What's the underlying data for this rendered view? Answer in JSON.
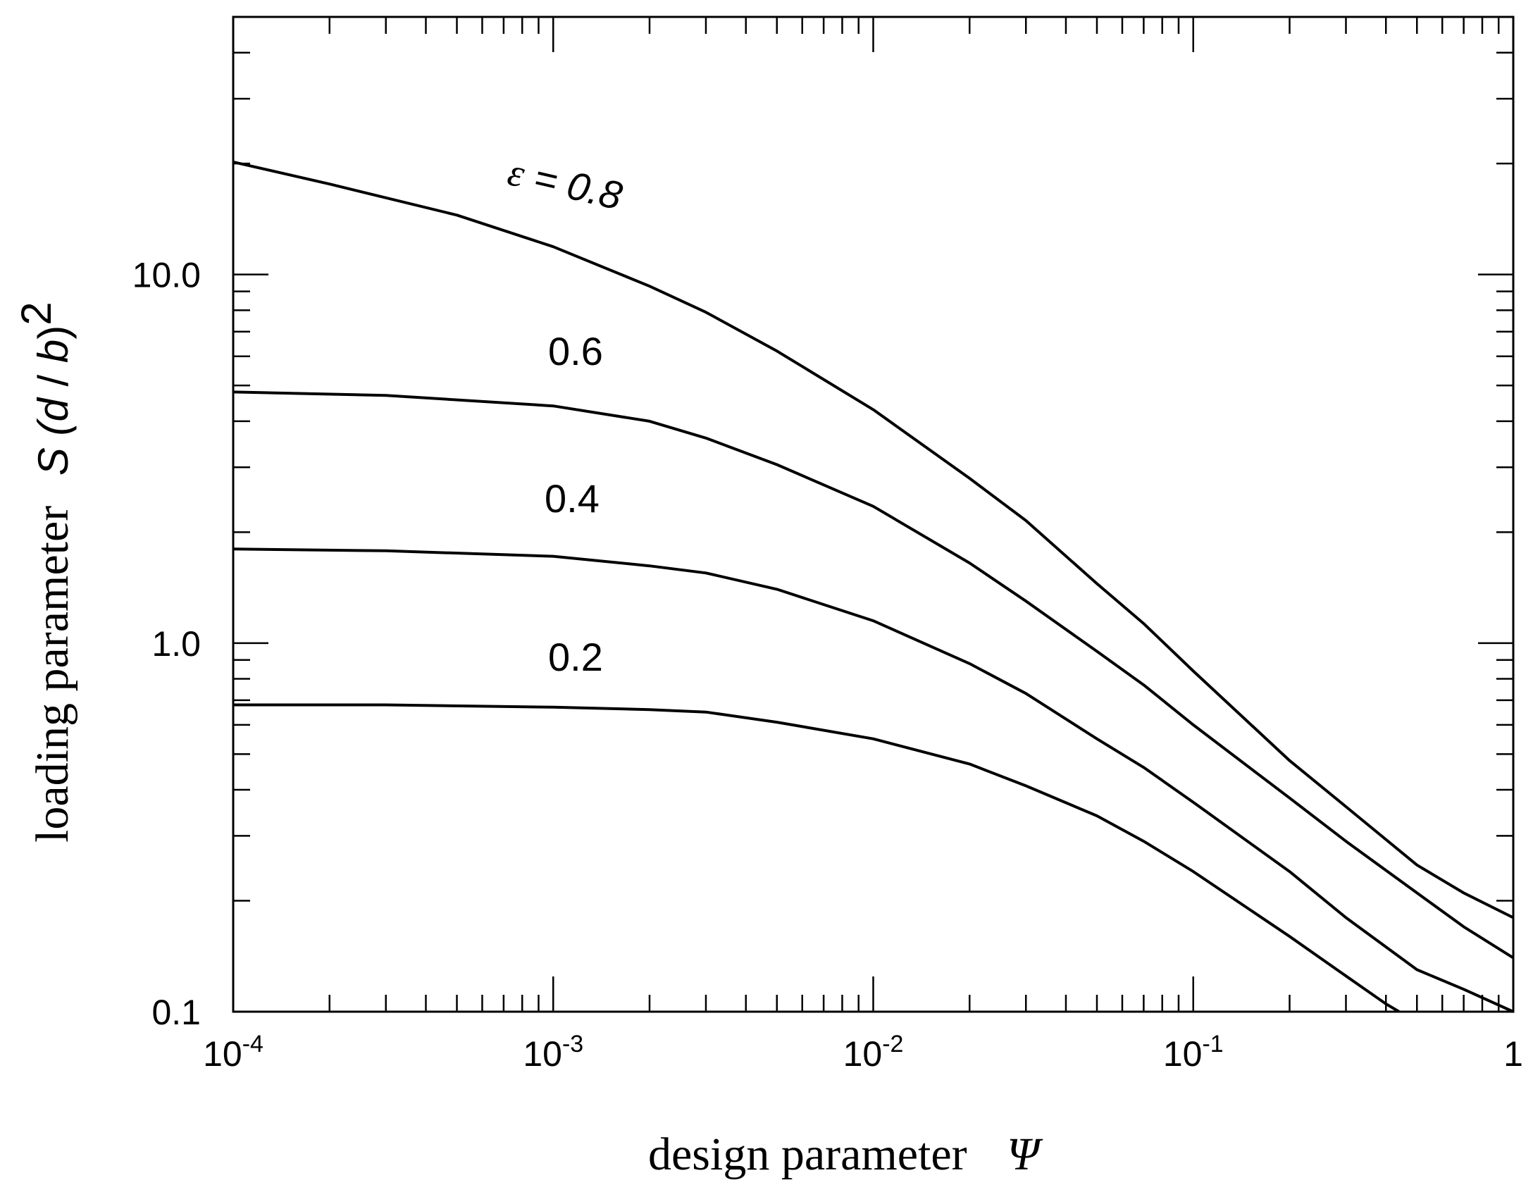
{
  "chart_data": {
    "type": "line",
    "x_scale": "log",
    "y_scale": "log",
    "xlim": [
      0.0001,
      1
    ],
    "ylim": [
      0.1,
      50
    ],
    "grid": false,
    "legend": "none",
    "xlabel": {
      "text": "design parameter",
      "symbol": "Ψ"
    },
    "ylabel": {
      "text": "loading parameter",
      "symbol_prefix": "S (",
      "symbol_d": "d",
      "symbol_slash": " / ",
      "symbol_b": "b",
      "symbol_suffix": ")",
      "exponent": "2"
    },
    "x_ticks": [
      {
        "value": 0.0001,
        "base": "10",
        "exp": "-4"
      },
      {
        "value": 0.001,
        "base": "10",
        "exp": "-3"
      },
      {
        "value": 0.01,
        "base": "10",
        "exp": "-2"
      },
      {
        "value": 0.1,
        "base": "10",
        "exp": "-1"
      },
      {
        "value": 1,
        "base": "1",
        "exp": ""
      }
    ],
    "y_ticks": [
      {
        "value": 0.1,
        "label": "0.1"
      },
      {
        "value": 1,
        "label": "1.0"
      },
      {
        "value": 10,
        "label": "10.0"
      }
    ],
    "series": [
      {
        "label": "ε = 0.8",
        "label_parts": {
          "symbol": "ε",
          "rest": " = 0.8"
        },
        "x": [
          0.0001,
          0.0002,
          0.0005,
          0.001,
          0.002,
          0.003,
          0.005,
          0.01,
          0.02,
          0.03,
          0.05,
          0.07,
          0.1,
          0.2,
          0.3,
          0.5,
          0.7,
          1
        ],
        "y": [
          20.2,
          17.6,
          14.5,
          11.9,
          9.3,
          7.9,
          6.2,
          4.3,
          2.8,
          2.15,
          1.45,
          1.13,
          0.84,
          0.48,
          0.36,
          0.25,
          0.21,
          0.18
        ]
      },
      {
        "label": "0.6",
        "x": [
          0.0001,
          0.0003,
          0.001,
          0.002,
          0.003,
          0.005,
          0.01,
          0.02,
          0.03,
          0.05,
          0.07,
          0.1,
          0.2,
          0.3,
          0.5,
          0.7,
          1
        ],
        "y": [
          4.8,
          4.7,
          4.4,
          4.0,
          3.6,
          3.05,
          2.35,
          1.65,
          1.3,
          0.95,
          0.77,
          0.6,
          0.38,
          0.29,
          0.21,
          0.17,
          0.14
        ]
      },
      {
        "label": "0.4",
        "x": [
          0.0001,
          0.0003,
          0.001,
          0.002,
          0.003,
          0.005,
          0.01,
          0.02,
          0.03,
          0.05,
          0.07,
          0.1,
          0.2,
          0.3,
          0.5,
          0.7,
          1
        ],
        "y": [
          1.8,
          1.78,
          1.72,
          1.62,
          1.55,
          1.4,
          1.15,
          0.88,
          0.73,
          0.55,
          0.46,
          0.37,
          0.24,
          0.18,
          0.13,
          0.115,
          0.1
        ]
      },
      {
        "label": "0.2",
        "x": [
          0.0001,
          0.0003,
          0.001,
          0.002,
          0.003,
          0.005,
          0.01,
          0.02,
          0.03,
          0.05,
          0.07,
          0.1,
          0.2,
          0.3,
          0.4,
          0.44
        ],
        "y": [
          0.68,
          0.68,
          0.67,
          0.66,
          0.65,
          0.61,
          0.55,
          0.47,
          0.41,
          0.34,
          0.29,
          0.24,
          0.16,
          0.125,
          0.105,
          0.1
        ]
      }
    ]
  }
}
